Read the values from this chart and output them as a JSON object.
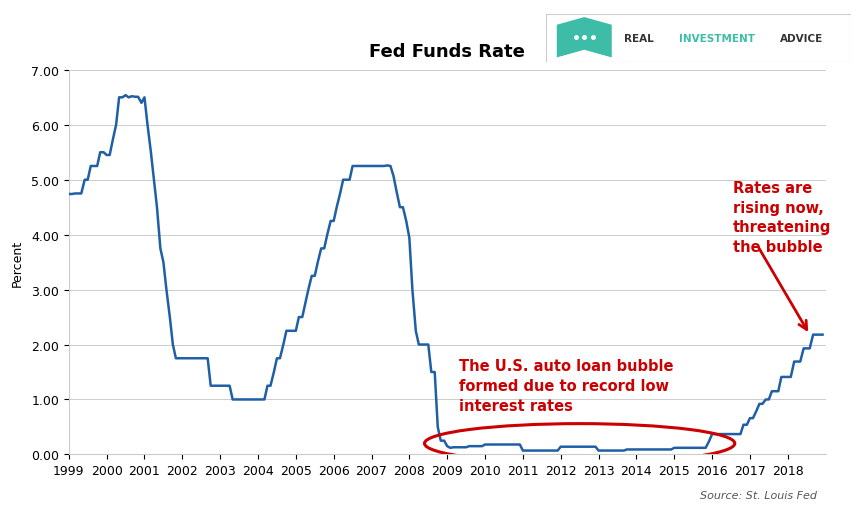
{
  "title": "Fed Funds Rate",
  "ylabel": "Percent",
  "source_text": "Source: St. Louis Fed",
  "xlim": [
    1999.0,
    2019.0
  ],
  "ylim": [
    0.0,
    7.0
  ],
  "yticks": [
    0.0,
    1.0,
    2.0,
    3.0,
    4.0,
    5.0,
    6.0,
    7.0
  ],
  "ytick_labels": [
    "0.00",
    "1.00",
    "2.00",
    "3.00",
    "4.00",
    "5.00",
    "6.00",
    "7.00"
  ],
  "xtick_labels": [
    "1999",
    "2000",
    "2001",
    "2002",
    "2003",
    "2004",
    "2005",
    "2006",
    "2007",
    "2008",
    "2009",
    "2010",
    "2011",
    "2012",
    "2013",
    "2014",
    "2015",
    "2016",
    "2017",
    "2018"
  ],
  "line_color": "#1f5fa6",
  "annotation1_text": "The U.S. auto loan bubble\nformed due to record low\ninterest rates",
  "annotation2_text": "Rates are\nrising now,\nthreatening\nthe bubble",
  "annotation_color": "#cc0000",
  "ellipse_color": "#cc0000",
  "background_color": "#ffffff",
  "shield_color": "#3dbda7",
  "fed_funds_dates": [
    1999.0,
    1999.08,
    1999.17,
    1999.25,
    1999.33,
    1999.42,
    1999.5,
    1999.58,
    1999.67,
    1999.75,
    1999.83,
    1999.92,
    2000.0,
    2000.08,
    2000.17,
    2000.25,
    2000.33,
    2000.42,
    2000.5,
    2000.58,
    2000.67,
    2000.75,
    2000.83,
    2000.92,
    2001.0,
    2001.08,
    2001.17,
    2001.25,
    2001.33,
    2001.42,
    2001.5,
    2001.58,
    2001.67,
    2001.75,
    2001.83,
    2001.92,
    2002.0,
    2002.08,
    2002.17,
    2002.25,
    2002.33,
    2002.42,
    2002.5,
    2002.58,
    2002.67,
    2002.75,
    2002.83,
    2002.92,
    2003.0,
    2003.08,
    2003.17,
    2003.25,
    2003.33,
    2003.42,
    2003.5,
    2003.58,
    2003.67,
    2003.75,
    2003.83,
    2003.92,
    2004.0,
    2004.08,
    2004.17,
    2004.25,
    2004.33,
    2004.42,
    2004.5,
    2004.58,
    2004.67,
    2004.75,
    2004.83,
    2004.92,
    2005.0,
    2005.08,
    2005.17,
    2005.25,
    2005.33,
    2005.42,
    2005.5,
    2005.58,
    2005.67,
    2005.75,
    2005.83,
    2005.92,
    2006.0,
    2006.08,
    2006.17,
    2006.25,
    2006.33,
    2006.42,
    2006.5,
    2006.58,
    2006.67,
    2006.75,
    2006.83,
    2006.92,
    2007.0,
    2007.08,
    2007.17,
    2007.25,
    2007.33,
    2007.42,
    2007.5,
    2007.58,
    2007.67,
    2007.75,
    2007.83,
    2007.92,
    2008.0,
    2008.08,
    2008.17,
    2008.25,
    2008.33,
    2008.42,
    2008.5,
    2008.58,
    2008.67,
    2008.75,
    2008.83,
    2008.92,
    2009.0,
    2009.08,
    2009.17,
    2009.25,
    2009.33,
    2009.42,
    2009.5,
    2009.58,
    2009.67,
    2009.75,
    2009.83,
    2009.92,
    2010.0,
    2010.08,
    2010.17,
    2010.25,
    2010.33,
    2010.42,
    2010.5,
    2010.58,
    2010.67,
    2010.75,
    2010.83,
    2010.92,
    2011.0,
    2011.08,
    2011.17,
    2011.25,
    2011.33,
    2011.42,
    2011.5,
    2011.58,
    2011.67,
    2011.75,
    2011.83,
    2011.92,
    2012.0,
    2012.08,
    2012.17,
    2012.25,
    2012.33,
    2012.42,
    2012.5,
    2012.58,
    2012.67,
    2012.75,
    2012.83,
    2012.92,
    2013.0,
    2013.08,
    2013.17,
    2013.25,
    2013.33,
    2013.42,
    2013.5,
    2013.58,
    2013.67,
    2013.75,
    2013.83,
    2013.92,
    2014.0,
    2014.08,
    2014.17,
    2014.25,
    2014.33,
    2014.42,
    2014.5,
    2014.58,
    2014.67,
    2014.75,
    2014.83,
    2014.92,
    2015.0,
    2015.08,
    2015.17,
    2015.25,
    2015.33,
    2015.42,
    2015.5,
    2015.58,
    2015.67,
    2015.75,
    2015.83,
    2015.92,
    2016.0,
    2016.08,
    2016.17,
    2016.25,
    2016.33,
    2016.42,
    2016.5,
    2016.58,
    2016.67,
    2016.75,
    2016.83,
    2016.92,
    2017.0,
    2017.08,
    2017.17,
    2017.25,
    2017.33,
    2017.42,
    2017.5,
    2017.58,
    2017.67,
    2017.75,
    2017.83,
    2017.92,
    2018.0,
    2018.08,
    2018.17,
    2018.25,
    2018.33,
    2018.42,
    2018.5,
    2018.58,
    2018.67,
    2018.75,
    2018.83,
    2018.92
  ],
  "fed_funds_values": [
    4.74,
    4.74,
    4.75,
    4.75,
    4.75,
    5.0,
    5.0,
    5.25,
    5.25,
    5.25,
    5.5,
    5.5,
    5.45,
    5.45,
    5.75,
    6.0,
    6.5,
    6.5,
    6.54,
    6.5,
    6.52,
    6.51,
    6.51,
    6.4,
    6.5,
    6.0,
    5.5,
    5.0,
    4.5,
    3.75,
    3.5,
    3.0,
    2.5,
    2.0,
    1.75,
    1.75,
    1.75,
    1.75,
    1.75,
    1.75,
    1.75,
    1.75,
    1.75,
    1.75,
    1.75,
    1.25,
    1.25,
    1.25,
    1.25,
    1.25,
    1.25,
    1.25,
    1.0,
    1.0,
    1.0,
    1.0,
    1.0,
    1.0,
    1.0,
    1.0,
    1.0,
    1.0,
    1.0,
    1.25,
    1.25,
    1.5,
    1.75,
    1.75,
    2.0,
    2.25,
    2.25,
    2.25,
    2.25,
    2.5,
    2.5,
    2.75,
    3.0,
    3.25,
    3.25,
    3.5,
    3.75,
    3.75,
    4.0,
    4.25,
    4.25,
    4.5,
    4.75,
    5.0,
    5.0,
    5.0,
    5.25,
    5.25,
    5.25,
    5.25,
    5.25,
    5.25,
    5.25,
    5.25,
    5.25,
    5.25,
    5.25,
    5.26,
    5.25,
    5.07,
    4.76,
    4.5,
    4.5,
    4.24,
    3.94,
    3.0,
    2.25,
    2.0,
    2.0,
    2.0,
    2.0,
    1.5,
    1.5,
    0.5,
    0.25,
    0.25,
    0.15,
    0.12,
    0.13,
    0.13,
    0.13,
    0.13,
    0.13,
    0.15,
    0.15,
    0.15,
    0.15,
    0.15,
    0.18,
    0.18,
    0.18,
    0.18,
    0.18,
    0.18,
    0.18,
    0.18,
    0.18,
    0.18,
    0.18,
    0.18,
    0.07,
    0.07,
    0.07,
    0.07,
    0.07,
    0.07,
    0.07,
    0.07,
    0.07,
    0.07,
    0.07,
    0.07,
    0.14,
    0.14,
    0.14,
    0.14,
    0.14,
    0.14,
    0.14,
    0.14,
    0.14,
    0.14,
    0.14,
    0.14,
    0.07,
    0.07,
    0.07,
    0.07,
    0.07,
    0.07,
    0.07,
    0.07,
    0.07,
    0.09,
    0.09,
    0.09,
    0.09,
    0.09,
    0.09,
    0.09,
    0.09,
    0.09,
    0.09,
    0.09,
    0.09,
    0.09,
    0.09,
    0.09,
    0.12,
    0.12,
    0.12,
    0.12,
    0.12,
    0.12,
    0.12,
    0.12,
    0.12,
    0.12,
    0.12,
    0.24,
    0.37,
    0.37,
    0.37,
    0.37,
    0.37,
    0.37,
    0.37,
    0.37,
    0.37,
    0.37,
    0.54,
    0.54,
    0.66,
    0.66,
    0.79,
    0.92,
    0.92,
    1.0,
    1.0,
    1.15,
    1.15,
    1.15,
    1.41,
    1.41,
    1.41,
    1.41,
    1.69,
    1.69,
    1.69,
    1.93,
    1.93,
    1.93,
    2.18,
    2.18,
    2.18,
    2.18
  ]
}
